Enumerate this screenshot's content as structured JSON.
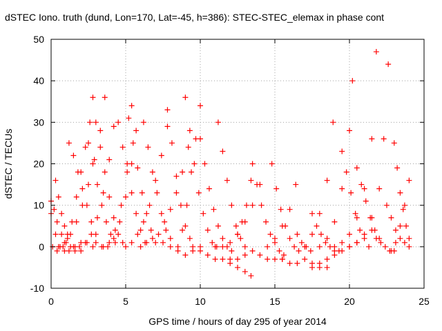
{
  "chart_data": {
    "type": "scatter",
    "title": "dSTEC Iono. truth (dund, Lon=170, Lat=-45, h=386): STEC-STEC_elemax in phase cont",
    "xlabel": "GPS time / hours of day 295 of year 2014",
    "ylabel": "dSTEC  / TECUs",
    "xlim": [
      0,
      25
    ],
    "ylim": [
      -10,
      50
    ],
    "xticks": [
      0,
      5,
      10,
      15,
      20,
      25
    ],
    "yticks": [
      -10,
      0,
      10,
      20,
      30,
      40,
      50
    ],
    "grid": true,
    "marker": "+",
    "color": "#ff0000",
    "series": [
      {
        "x": [
          0.0,
          0.2,
          0.4,
          0.7,
          1.0,
          1.3,
          1.6,
          2.0
        ],
        "y": [
          11,
          9,
          6,
          3,
          1,
          0,
          -1,
          -1
        ]
      },
      {
        "x": [
          0.0,
          0.3,
          0.6,
          0.9,
          1.2,
          1.6,
          2.0,
          2.4,
          2.8
        ],
        "y": [
          8,
          3,
          0,
          -1,
          -1,
          0,
          1,
          1,
          0
        ]
      },
      {
        "x": [
          0.1,
          0.4,
          0.8,
          1.1,
          1.4,
          1.7,
          2.0,
          2.3,
          2.6
        ],
        "y": [
          0,
          -1,
          0,
          2,
          6,
          12,
          18,
          24,
          30
        ]
      },
      {
        "x": [
          0.3,
          0.5,
          0.7,
          0.9,
          1.1
        ],
        "y": [
          16,
          12,
          8,
          5,
          3
        ]
      },
      {
        "x": [
          1.2,
          1.5,
          1.8,
          2.1,
          2.4,
          2.7,
          3.0
        ],
        "y": [
          25,
          22,
          18,
          14,
          10,
          6,
          3
        ]
      },
      {
        "x": [
          0.5,
          0.9,
          1.3,
          1.7,
          2.1,
          2.5,
          2.9,
          3.3,
          3.6
        ],
        "y": [
          0,
          1,
          3,
          6,
          10,
          15,
          21,
          28,
          36
        ]
      },
      {
        "x": [
          1.5,
          1.9,
          2.3,
          2.7,
          3.1,
          3.5,
          3.9,
          4.2
        ],
        "y": [
          0,
          0,
          1,
          3,
          7,
          13,
          21,
          29
        ]
      },
      {
        "x": [
          2.5,
          2.8,
          3.1,
          3.4,
          3.7,
          4.0,
          4.3
        ],
        "y": [
          25,
          20,
          15,
          10,
          6,
          3,
          1
        ]
      },
      {
        "x": [
          2.8,
          3.0,
          3.3,
          3.6,
          3.9,
          4.2,
          4.5,
          4.8
        ],
        "y": [
          36,
          30,
          24,
          18,
          12,
          7,
          3,
          1
        ]
      },
      {
        "x": [
          3.0,
          3.4,
          3.8,
          4.2,
          4.6,
          5.0,
          5.4,
          5.7
        ],
        "y": [
          1,
          0,
          0,
          2,
          6,
          12,
          20,
          28
        ]
      },
      {
        "x": [
          3.5,
          3.9,
          4.3,
          4.7,
          5.1,
          5.4
        ],
        "y": [
          0,
          1,
          4,
          10,
          20,
          34
        ]
      },
      {
        "x": [
          4.5,
          4.8,
          5.1,
          5.4,
          5.7,
          6.0,
          6.3
        ],
        "y": [
          30,
          24,
          18,
          13,
          8,
          4,
          1
        ]
      },
      {
        "x": [
          5.2,
          5.5,
          5.8,
          6.1,
          6.4,
          6.7,
          7.0
        ],
        "y": [
          31,
          25,
          19,
          13,
          8,
          4,
          1
        ]
      },
      {
        "x": [
          5.0,
          5.4,
          5.8,
          6.2,
          6.6,
          7.0,
          7.4,
          7.8
        ],
        "y": [
          0,
          1,
          3,
          6,
          10,
          16,
          22,
          29
        ]
      },
      {
        "x": [
          6.2,
          6.5,
          6.8,
          7.1,
          7.4,
          7.7,
          8.0
        ],
        "y": [
          30,
          24,
          18,
          13,
          8,
          4,
          2
        ]
      },
      {
        "x": [
          6.0,
          6.4,
          6.8,
          7.2,
          7.6,
          8.0,
          8.4,
          8.8,
          9.2
        ],
        "y": [
          0,
          1,
          2,
          3,
          6,
          9,
          13,
          18,
          24
        ]
      },
      {
        "x": [
          7.8,
          8.1,
          8.4,
          8.7,
          9.0,
          9.3
        ],
        "y": [
          33,
          25,
          17,
          10,
          5,
          2
        ]
      },
      {
        "x": [
          7.5,
          8.0,
          8.5,
          9.0,
          9.5,
          10.0
        ],
        "y": [
          1,
          0,
          -1,
          -2,
          -1,
          0
        ]
      },
      {
        "x": [
          9.0,
          9.3,
          9.6,
          9.9,
          10.2,
          10.5,
          10.8,
          11.1
        ],
        "y": [
          36,
          28,
          20,
          13,
          8,
          4,
          1,
          0
        ]
      },
      {
        "x": [
          8.5,
          8.8,
          9.1,
          9.4,
          9.7,
          10.0
        ],
        "y": [
          0,
          4,
          10,
          18,
          26,
          34
        ]
      },
      {
        "x": [
          10.0,
          10.3,
          10.6,
          10.9,
          11.2,
          11.5,
          11.8,
          12.1
        ],
        "y": [
          26,
          20,
          14,
          9,
          5,
          2,
          0,
          -1
        ]
      },
      {
        "x": [
          9.5,
          10.0,
          10.5,
          11.0,
          11.5,
          12.0,
          12.5,
          13.0,
          13.4
        ],
        "y": [
          0,
          -1,
          -2,
          -3,
          -3,
          -4,
          -5,
          -6,
          -7
        ]
      },
      {
        "x": [
          11.2,
          11.5,
          11.8,
          12.1,
          12.4,
          12.7,
          13.0
        ],
        "y": [
          30,
          23,
          16,
          10,
          5,
          2,
          0
        ]
      },
      {
        "x": [
          11.0,
          11.5,
          12.0,
          12.5,
          13.0,
          13.5,
          14.0
        ],
        "y": [
          0,
          0,
          1,
          3,
          6,
          10,
          15
        ]
      },
      {
        "x": [
          12.0,
          12.5,
          13.0,
          13.5,
          14.0,
          14.5,
          15.0,
          15.5
        ],
        "y": [
          -3,
          -3,
          -2,
          -1,
          -2,
          -3,
          -3,
          -3
        ]
      },
      {
        "x": [
          12.5,
          12.8,
          13.1,
          13.4
        ],
        "y": [
          3,
          6,
          10,
          16
        ]
      },
      {
        "x": [
          13.5,
          13.8,
          14.1,
          14.4,
          14.7,
          15.0,
          15.3,
          15.6
        ],
        "y": [
          20,
          15,
          10,
          6,
          3,
          1,
          -1,
          -2
        ]
      },
      {
        "x": [
          14.8,
          15.1,
          15.4,
          15.7,
          16.0,
          16.3,
          16.6
        ],
        "y": [
          20,
          14,
          9,
          5,
          2,
          0,
          -1
        ]
      },
      {
        "x": [
          14.5,
          15.0,
          15.5,
          16.0,
          16.4
        ],
        "y": [
          0,
          2,
          5,
          9,
          15
        ]
      },
      {
        "x": [
          15.5,
          16.0,
          16.5,
          17.0,
          17.5,
          18.0,
          18.5
        ],
        "y": [
          -3,
          -4,
          -4,
          -3,
          -4,
          -5,
          -5
        ]
      },
      {
        "x": [
          16.5,
          16.8,
          17.1,
          17.4
        ],
        "y": [
          3,
          1,
          0,
          -1
        ]
      },
      {
        "x": [
          17.5,
          17.8,
          18.1,
          18.4,
          18.7,
          19.0,
          19.3
        ],
        "y": [
          8,
          5,
          3,
          1,
          0,
          -1,
          -1
        ]
      },
      {
        "x": [
          17.5,
          18.0,
          18.5,
          19.0,
          19.5,
          20.0,
          20.5
        ],
        "y": [
          -5,
          -4,
          -3,
          -2,
          -1,
          0,
          1
        ]
      },
      {
        "x": [
          17.0,
          17.5,
          18.0,
          18.5,
          18.9
        ],
        "y": [
          0,
          3,
          8,
          16,
          30
        ]
      },
      {
        "x": [
          18.0,
          18.5,
          19.0,
          19.5,
          20.0,
          20.2
        ],
        "y": [
          0,
          2,
          6,
          14,
          28,
          40
        ]
      },
      {
        "x": [
          19.5,
          19.8,
          20.1,
          20.4,
          20.7,
          21.0,
          21.3
        ],
        "y": [
          23,
          18,
          13,
          8,
          4,
          2,
          0
        ]
      },
      {
        "x": [
          19.0,
          19.5,
          20.0,
          20.5,
          21.0,
          21.5,
          21.8
        ],
        "y": [
          0,
          1,
          3,
          7,
          14,
          26,
          47
        ]
      },
      {
        "x": [
          20.0,
          20.5,
          21.0,
          21.5,
          22.0,
          22.3,
          22.6
        ],
        "y": [
          0,
          1,
          3,
          7,
          14,
          26,
          44
        ]
      },
      {
        "x": [
          20.5,
          20.8,
          21.1,
          21.4,
          21.7,
          22.0
        ],
        "y": [
          19,
          15,
          11,
          7,
          4,
          2
        ]
      },
      {
        "x": [
          21.5,
          21.8,
          22.1,
          22.4,
          22.7,
          23.0
        ],
        "y": [
          4,
          2,
          1,
          0,
          -1,
          -1
        ]
      },
      {
        "x": [
          22.5,
          22.8,
          23.1,
          23.4,
          23.7,
          24.0
        ],
        "y": [
          10,
          7,
          4,
          2,
          1,
          0
        ]
      },
      {
        "x": [
          23.0,
          23.2,
          23.4,
          23.6,
          23.8,
          24.0
        ],
        "y": [
          25,
          19,
          13,
          9,
          5,
          2
        ]
      },
      {
        "x": [
          22.8,
          23.1,
          23.4,
          23.7,
          24.0
        ],
        "y": [
          -1,
          1,
          5,
          10,
          16
        ]
      }
    ]
  }
}
